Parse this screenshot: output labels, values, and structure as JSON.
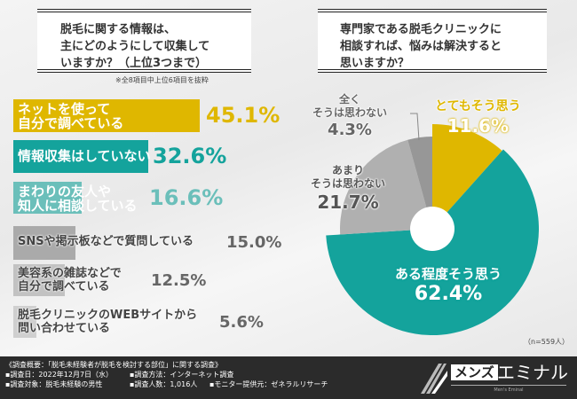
{
  "chart_data": [
    {
      "type": "bar",
      "orientation": "horizontal",
      "title": "脱毛に関する情報は、主にどのようにして収集していますか？（上位3つまで）",
      "note": "※全8項目中上位6項目を抜粋",
      "categories": [
        "ネットを使って自分で調べている",
        "情報収集はしていない",
        "まわりの友人や知人に相談している",
        "SNSや掲示板などで質問している",
        "美容系の雑誌などで自分で調べている",
        "脱毛クリニックのWEBサイトから問い合わせている"
      ],
      "label_lines": [
        [
          "ネットを使って",
          "自分で調べている"
        ],
        [
          "情報収集はしていない"
        ],
        [
          "まわりの友人や",
          "知人に相談している"
        ],
        [
          "SNSや掲示板などで質問している"
        ],
        [
          "美容系の雑誌などで",
          "自分で調べている"
        ],
        [
          "脱毛クリニックのWEBサイトから",
          "問い合わせている"
        ]
      ],
      "values": [
        45.1,
        32.6,
        16.6,
        15.0,
        12.5,
        5.6
      ],
      "value_labels": [
        "45.1%",
        "32.6%",
        "16.6%",
        "15.0%",
        "12.5%",
        "5.6%"
      ],
      "colors": [
        "#dfb700",
        "#14a39c",
        "#6bbfba",
        "#aaaaaa",
        "#c2c2c2",
        "#cfcfcf"
      ],
      "value_colors": [
        "#dfb700",
        "#14a39c",
        "#6bbfba",
        "#666666",
        "#666666",
        "#666666"
      ]
    },
    {
      "type": "pie",
      "donut": true,
      "title": "専門家である脱毛クリニックに相談すれば、悩みは解決すると思いますか？",
      "categories": [
        "とてもそう思う",
        "ある程度そう思う",
        "あまりそう思わない",
        "全くそう思わない"
      ],
      "label_lines": [
        [
          "とてもそう思う"
        ],
        [
          "ある程度そう思う"
        ],
        [
          "あまり",
          "そうは思わない"
        ],
        [
          "全く",
          "そうは思わない"
        ]
      ],
      "values": [
        11.6,
        62.4,
        21.7,
        4.3
      ],
      "value_labels": [
        "11.6%",
        "62.4%",
        "21.7%",
        "4.3%"
      ],
      "colors": [
        "#dfb700",
        "#14a39c",
        "#b0b0b0",
        "#979797"
      ],
      "sample": "（n=559人）"
    }
  ],
  "title_lines": {
    "q1": [
      "脱毛に関する情報は、",
      "主にどのようにして収集して",
      "いますか？（上位3つまで）"
    ],
    "q2": [
      "専門家である脱毛クリニックに",
      "相談すれば、悩みは解決すると",
      "思いますか？"
    ]
  },
  "footer": {
    "summary": "《調査概要：「脱毛未経験者が脱毛を検討する部位」に関する調査》",
    "date": "▪調査日：2022年12月7日（水）",
    "method": "▪調査方法：インターネット調査",
    "target": "▪調査対象：脱毛未経験の男性",
    "count": "▪調査人数：1,016人",
    "provider": "▪モニター提供元：ゼネラルリサーチ"
  },
  "logo": {
    "box": "メンズ",
    "name": "エミナル",
    "sub": "Men's Eminal"
  }
}
